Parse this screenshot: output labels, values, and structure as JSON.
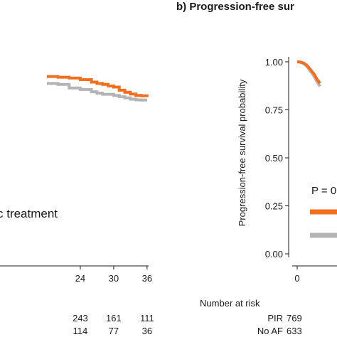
{
  "colors": {
    "pir": "#f07020",
    "no_af": "#b4b4b4",
    "axis": "#1a1a1a"
  },
  "chart_data": [
    {
      "type": "line",
      "panel": "left (partial)",
      "annotation": "c treatment",
      "xlim": [
        18,
        36
      ],
      "ylim": [
        0,
        1
      ],
      "x_ticks": [
        "24",
        "30",
        "36"
      ],
      "series": [
        {
          "key": "pir",
          "x": [
            18,
            20,
            22,
            24,
            26,
            27,
            28,
            29,
            30,
            31,
            32,
            33,
            34,
            35,
            36
          ],
          "y": [
            0.843,
            0.84,
            0.836,
            0.829,
            0.818,
            0.812,
            0.808,
            0.801,
            0.796,
            0.782,
            0.773,
            0.765,
            0.759,
            0.757,
            0.752
          ]
        },
        {
          "key": "no_af",
          "x": [
            18,
            20,
            22,
            24,
            26,
            27,
            28,
            30,
            31,
            32,
            33,
            34,
            35,
            36
          ],
          "y": [
            0.812,
            0.808,
            0.792,
            0.785,
            0.775,
            0.769,
            0.764,
            0.759,
            0.753,
            0.748,
            0.742,
            0.739,
            0.738,
            0.738
          ]
        }
      ],
      "risk_table": {
        "times": [
          "24",
          "30",
          "36"
        ],
        "rows": [
          {
            "key": "pir",
            "values": [
              "243",
              "161",
              "111"
            ]
          },
          {
            "key": "no_af",
            "values": [
              "114",
              "77",
              "36"
            ]
          }
        ]
      }
    },
    {
      "type": "line",
      "panel": "b",
      "title": "b) Progression-free sur",
      "ylabel": "Progression-free survival probability",
      "ylim": [
        0,
        1
      ],
      "y_ticks": [
        "1.00",
        "0.75",
        "0.50",
        "0.25",
        "0.00"
      ],
      "x_ticks": [
        "0"
      ],
      "p_label": "P = 0",
      "series": [
        {
          "key": "pir",
          "x": [
            0,
            0.3,
            1,
            1.5,
            2,
            2.6,
            3.0,
            3.5
          ],
          "y": [
            1.0,
            1.0,
            0.994,
            0.982,
            0.962,
            0.936,
            0.912,
            0.888
          ]
        },
        {
          "key": "no_af",
          "x": [
            0,
            0.3,
            1,
            1.5,
            2,
            2.6,
            3.0,
            3.5
          ],
          "y": [
            1.0,
            1.0,
            0.99,
            0.976,
            0.953,
            0.924,
            0.898,
            0.872
          ]
        }
      ],
      "legend_entries": [
        "pir",
        "no_af"
      ],
      "risk_table": {
        "header": "Number at risk",
        "rows": [
          {
            "key": "pir",
            "label": "PIR",
            "values": [
              "769"
            ]
          },
          {
            "key": "no_af",
            "label": "No AF",
            "values": [
              "633"
            ]
          }
        ]
      }
    }
  ]
}
